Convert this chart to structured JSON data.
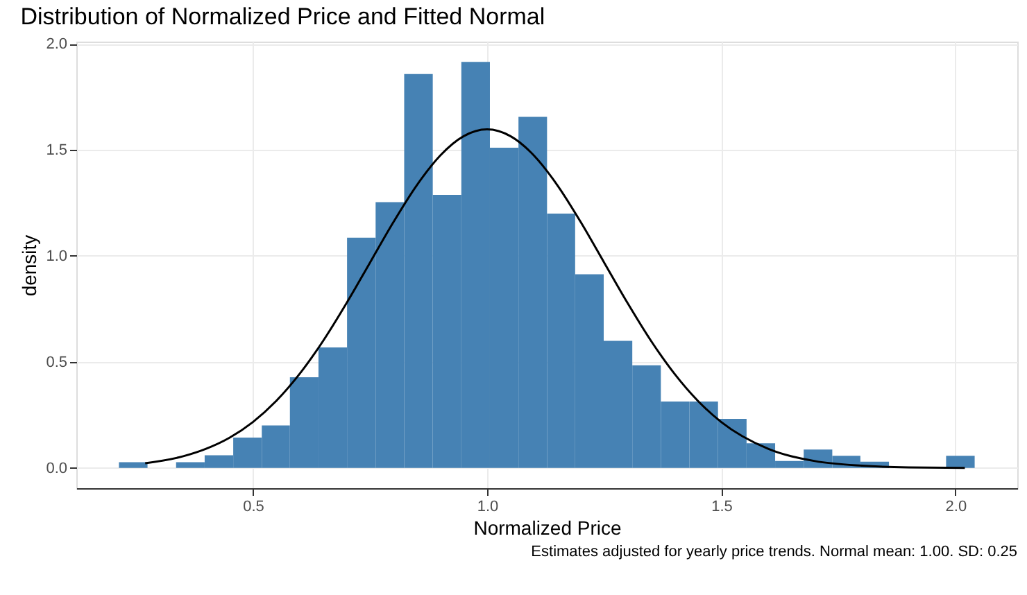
{
  "chart_data": {
    "type": "histogram",
    "title": "Distribution of Normalized Price and Fitted Normal",
    "xlabel": "Normalized Price",
    "ylabel": "density",
    "bins": [
      0.214,
      0.275,
      0.336,
      0.397,
      0.458,
      0.519,
      0.579,
      0.64,
      0.701,
      0.762,
      0.823,
      0.884,
      0.945,
      1.006,
      1.067,
      1.128,
      1.188,
      1.249,
      1.31,
      1.371,
      1.432,
      1.493,
      1.554,
      1.615,
      1.676,
      1.737,
      1.797,
      1.858,
      1.98,
      2.041
    ],
    "series": [
      {
        "color": "#4682b4",
        "values": [
          0.027,
          0,
          0.027,
          0.059,
          0.143,
          0.2,
          0.427,
          0.568,
          1.085,
          1.253,
          1.857,
          1.287,
          1.914,
          1.51,
          1.655,
          1.199,
          0.913,
          0.599,
          0.484,
          0.313,
          0.313,
          0.231,
          0.116,
          0.032,
          0.086,
          0.057,
          0.029,
          0,
          0.057
        ]
      },
      {
        "type": "line",
        "color": "#000000",
        "x": [
          0.27,
          0.35,
          0.4,
          0.45,
          0.5,
          0.55,
          0.6,
          0.65,
          0.7,
          0.75,
          0.8,
          0.85,
          0.9,
          0.95,
          1.0,
          1.05,
          1.1,
          1.15,
          1.2,
          1.25,
          1.3,
          1.35,
          1.4,
          1.45,
          1.5,
          1.6,
          1.7,
          1.8,
          1.9,
          2.02
        ],
        "values": [
          0.022,
          0.054,
          0.09,
          0.142,
          0.216,
          0.316,
          0.444,
          0.599,
          0.777,
          0.968,
          1.159,
          1.333,
          1.473,
          1.564,
          1.596,
          1.564,
          1.473,
          1.333,
          1.159,
          0.968,
          0.777,
          0.599,
          0.444,
          0.316,
          0.216,
          0.09,
          0.032,
          0.01,
          0.002,
          0.0
        ]
      }
    ],
    "xlim": [
      0.123,
      2.132
    ],
    "ylim": [
      -0.096,
      2.01
    ],
    "xticks": [
      0.5,
      {
        "value": 1,
        "label": "1.0"
      },
      1.5,
      {
        "value": 2,
        "label": "2.0"
      }
    ],
    "yticks": [
      {
        "value": 0,
        "label": "0.0"
      },
      0.5,
      {
        "value": 1,
        "label": "1.0"
      },
      1.5,
      {
        "value": 2,
        "label": "2.0"
      }
    ],
    "grid": true,
    "annotations": [
      "Estimates adjusted for yearly price trends.  Normal mean: 1.00. SD: 0.25"
    ]
  }
}
